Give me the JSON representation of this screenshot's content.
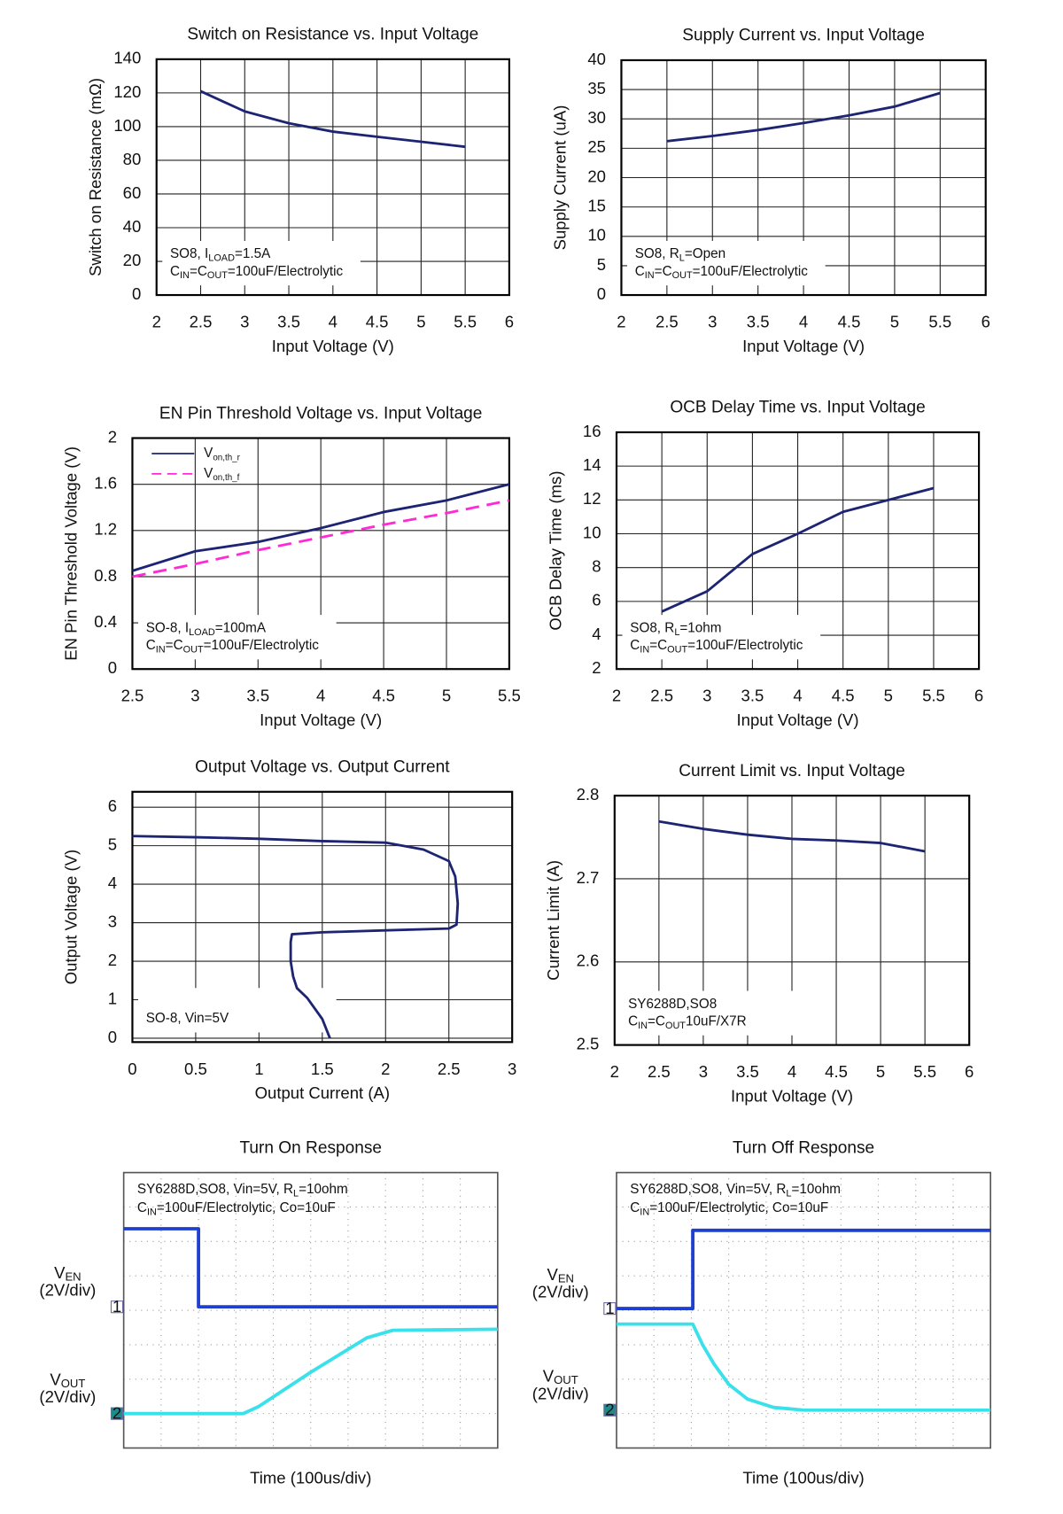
{
  "chart_data": [
    {
      "type": "line",
      "title": "Switch on Resistance vs. Input Voltage",
      "xlabel": "Input Voltage (V)",
      "ylabel": "Switch on Resistance (mΩ)",
      "xlim": [
        2,
        6
      ],
      "xticks": [
        2,
        2.5,
        3,
        3.5,
        4,
        4.5,
        5,
        5.5,
        6
      ],
      "ylim": [
        0,
        140
      ],
      "yticks": [
        0,
        20,
        40,
        60,
        80,
        100,
        120,
        140
      ],
      "grid": true,
      "x": [
        2.5,
        3,
        3.5,
        4,
        4.5,
        5,
        5.5
      ],
      "series": [
        {
          "color": "#1c2473",
          "values": [
            121,
            109,
            102,
            97,
            94,
            91,
            88
          ]
        }
      ],
      "annotation": [
        [
          "SO8, I",
          {
            "sub": "LOAD"
          },
          "=1.5A"
        ],
        [
          "C",
          {
            "sub": "IN"
          },
          "=C",
          {
            "sub": "OUT"
          },
          "=100uF/Electrolytic"
        ]
      ]
    },
    {
      "type": "line",
      "title": "Supply Current vs. Input Voltage",
      "xlabel": "Input Voltage (V)",
      "ylabel": "Supply Current (uA)",
      "xlim": [
        2,
        6
      ],
      "xticks": [
        2,
        2.5,
        3,
        3.5,
        4,
        4.5,
        5,
        5.5,
        6
      ],
      "ylim": [
        0,
        40
      ],
      "yticks": [
        0,
        5,
        10,
        15,
        20,
        25,
        30,
        35,
        40
      ],
      "grid": true,
      "x": [
        2.5,
        3,
        3.5,
        4,
        4.5,
        5,
        5.5
      ],
      "series": [
        {
          "color": "#1c2473",
          "values": [
            26.2,
            27.1,
            28.1,
            29.3,
            30.6,
            32.1,
            34.4
          ]
        }
      ],
      "annotation": [
        [
          "SO8, R",
          {
            "sub": "L"
          },
          "=Open"
        ],
        [
          "C",
          {
            "sub": "IN"
          },
          "=C",
          {
            "sub": "OUT"
          },
          "=100uF/Electrolytic"
        ]
      ]
    },
    {
      "type": "line",
      "title": "EN Pin Threshold Voltage vs. Input Voltage",
      "xlabel": "Input Voltage (V)",
      "ylabel": "EN Pin Threshold Voltage (V)",
      "xlim": [
        2.5,
        5.5
      ],
      "xticks": [
        2.5,
        3,
        3.5,
        4,
        4.5,
        5,
        5.5
      ],
      "ylim": [
        0,
        2
      ],
      "yticks": [
        0,
        0.4,
        0.8,
        1.2,
        1.6,
        2
      ],
      "grid": true,
      "x": [
        2.5,
        3,
        3.5,
        4,
        4.5,
        5,
        5.5
      ],
      "series": [
        {
          "name": [
            "V",
            {
              "sub": "on,th_r"
            }
          ],
          "color": "#1c2473",
          "dash": false,
          "values": [
            0.85,
            1.02,
            1.1,
            1.22,
            1.36,
            1.46,
            1.6
          ]
        },
        {
          "name": [
            "V",
            {
              "sub": "on,th_f"
            }
          ],
          "color": "#ff2ad4",
          "dash": true,
          "values": [
            0.8,
            0.91,
            1.03,
            1.14,
            1.25,
            1.35,
            1.46
          ]
        }
      ],
      "annotation": [
        [
          "SO-8, I",
          {
            "sub": "LOAD"
          },
          "=100mA"
        ],
        [
          "C",
          {
            "sub": "IN"
          },
          "=C",
          {
            "sub": "OUT"
          },
          "=100uF/Electrolytic"
        ]
      ]
    },
    {
      "type": "line",
      "title": "OCB Delay Time vs. Input Voltage",
      "xlabel": "Input Voltage (V)",
      "ylabel": "OCB Delay Time (ms)",
      "xlim": [
        2,
        6
      ],
      "xticks": [
        2,
        2.5,
        3,
        3.5,
        4,
        4.5,
        5,
        5.5,
        6
      ],
      "ylim": [
        2,
        16
      ],
      "yticks": [
        2,
        4,
        6,
        8,
        10,
        12,
        14,
        16
      ],
      "grid": true,
      "x": [
        2.5,
        3,
        3.5,
        4,
        4.5,
        5,
        5.5
      ],
      "series": [
        {
          "color": "#1c2473",
          "values": [
            5.4,
            6.6,
            8.8,
            10.0,
            11.3,
            12.0,
            12.7
          ]
        }
      ],
      "annotation": [
        [
          "SO8, R",
          {
            "sub": "L"
          },
          "=1ohm"
        ],
        [
          "C",
          {
            "sub": "IN"
          },
          "=C",
          {
            "sub": "OUT"
          },
          "=100uF/Electrolytic"
        ]
      ]
    },
    {
      "type": "line",
      "title": "Output Voltage vs. Output Current",
      "xlabel": "Output Current (A)",
      "ylabel": "Output Voltage (V)",
      "xlim": [
        0,
        3
      ],
      "xticks": [
        0,
        0.5,
        1,
        1.5,
        2,
        2.5,
        3
      ],
      "ylim": [
        -0.1,
        6.4
      ],
      "yticks": [
        0,
        1,
        2,
        3,
        4,
        5,
        6
      ],
      "grid": true,
      "x": [
        0,
        0.5,
        1,
        1.5,
        2,
        2.3,
        2.5,
        2.55,
        2.57,
        2.56,
        2.5,
        2,
        1.5,
        1.26,
        1.25,
        1.25,
        1.27,
        1.3,
        1.38,
        1.5,
        1.56
      ],
      "series": [
        {
          "color": "#1c2473",
          "values": [
            5.25,
            5.22,
            5.18,
            5.12,
            5.08,
            4.9,
            4.6,
            4.2,
            3.5,
            2.95,
            2.85,
            2.8,
            2.75,
            2.7,
            2.5,
            2.0,
            1.6,
            1.3,
            1.05,
            0.5,
            0
          ]
        }
      ],
      "annotation": [
        [
          "SO-8, Vin=5V"
        ]
      ]
    },
    {
      "type": "line",
      "title": "Current Limit vs. Input Voltage",
      "xlabel": "Input Voltage (V)",
      "ylabel": "Current Limit (A)",
      "xlim": [
        2,
        6
      ],
      "xticks": [
        2,
        2.5,
        3,
        3.5,
        4,
        4.5,
        5,
        5.5,
        6
      ],
      "ylim": [
        2.5,
        2.8
      ],
      "yticks": [
        2.5,
        2.6,
        2.7,
        2.8
      ],
      "grid": true,
      "x": [
        2.5,
        3,
        3.5,
        4,
        4.5,
        5,
        5.5
      ],
      "series": [
        {
          "color": "#1c2473",
          "values": [
            2.769,
            2.76,
            2.753,
            2.748,
            2.746,
            2.743,
            2.733
          ]
        }
      ],
      "annotation": [
        [
          "SY6288D,SO8"
        ],
        [
          "C",
          {
            "sub": "IN"
          },
          "=C",
          {
            "sub": "OUT"
          },
          "10uF/X7R"
        ]
      ]
    },
    {
      "type": "scope",
      "title": "Turn On Response",
      "xlabel": "Time (100us/div)",
      "xlim": [
        0,
        10
      ],
      "xticks": [
        0,
        1,
        2,
        3,
        4,
        5,
        6,
        7,
        8,
        9,
        10
      ],
      "ylim": [
        0,
        8
      ],
      "yticks": [
        0,
        1,
        2,
        3,
        4,
        5,
        6,
        7,
        8
      ],
      "series": [
        {
          "label": [
            [
              "V",
              {
                "sub": "EN"
              }
            ],
            [
              "(2V/div)"
            ]
          ],
          "channel": "1",
          "color": "#1f3fd0",
          "x": [
            0,
            2,
            2,
            10
          ],
          "values": [
            6.37,
            6.37,
            4.1,
            4.1
          ]
        },
        {
          "label": [
            [
              "V",
              {
                "sub": "OUT"
              }
            ],
            [
              "(2V/div)"
            ]
          ],
          "channel": "2",
          "color": "#3ae0ea",
          "x": [
            0,
            3.2,
            3.6,
            5,
            6.5,
            7.2,
            10
          ],
          "values": [
            1.0,
            1.0,
            1.2,
            2.2,
            3.2,
            3.42,
            3.45
          ]
        }
      ],
      "annotation": [
        [
          "SY6288D,SO8, Vin=5V, R",
          {
            "sub": "L"
          },
          "=10ohm"
        ],
        [
          "C",
          {
            "sub": "IN"
          },
          "=100uF/Electrolytic, Co=10uF"
        ]
      ]
    },
    {
      "type": "scope",
      "title": "Turn Off Response",
      "xlabel": "Time (100us/div)",
      "xlim": [
        0,
        10
      ],
      "xticks": [
        0,
        1,
        2,
        3,
        4,
        5,
        6,
        7,
        8,
        9,
        10
      ],
      "ylim": [
        0,
        8
      ],
      "yticks": [
        0,
        1,
        2,
        3,
        4,
        5,
        6,
        7,
        8
      ],
      "series": [
        {
          "label": [
            [
              "V",
              {
                "sub": "EN"
              }
            ],
            [
              "(2V/div)"
            ]
          ],
          "channel": "1",
          "color": "#1f3fd0",
          "x": [
            0,
            2.04,
            2.04,
            10
          ],
          "values": [
            4.05,
            4.05,
            6.32,
            6.32
          ]
        },
        {
          "label": [
            [
              "V",
              {
                "sub": "OUT"
              }
            ],
            [
              "(2V/div)"
            ]
          ],
          "channel": "2",
          "color": "#3ae0ea",
          "x": [
            0,
            2.04,
            2.3,
            2.6,
            3.0,
            3.5,
            4.2,
            5,
            10
          ],
          "values": [
            3.6,
            3.6,
            3.0,
            2.45,
            1.85,
            1.42,
            1.18,
            1.1,
            1.1
          ]
        }
      ],
      "annotation": [
        [
          "SY6288D,SO8, Vin=5V, R",
          {
            "sub": "L"
          },
          "=10ohm"
        ],
        [
          "C",
          {
            "sub": "IN"
          },
          "=100uF/Electrolytic, Co=10uF"
        ]
      ]
    }
  ]
}
